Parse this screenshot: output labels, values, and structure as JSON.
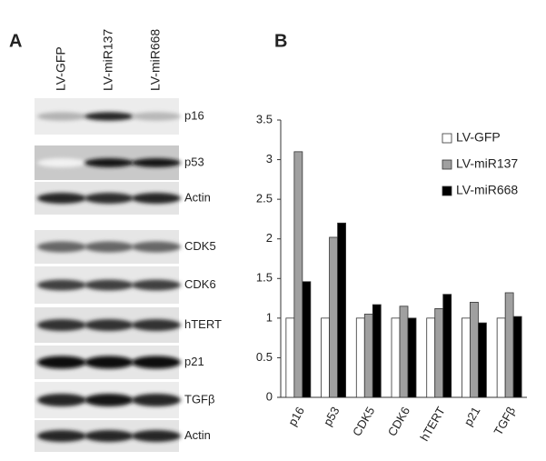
{
  "figure": {
    "panel_a": "A",
    "panel_b": "B"
  },
  "blot": {
    "lanes": [
      "LV-GFP",
      "LV-miR137",
      "LV-miR668"
    ],
    "rows": [
      "p16",
      "p53",
      "Actin",
      "CDK5",
      "CDK6",
      "hTERT",
      "p21",
      "TGFβ",
      "Actin"
    ]
  },
  "chart_data": {
    "type": "bar",
    "categories": [
      "p16",
      "p53",
      "CDK5",
      "CDK6",
      "hTERT",
      "p21",
      "TGFβ"
    ],
    "series": [
      {
        "name": "LV-GFP",
        "color": "#ffffff",
        "values": [
          1,
          1,
          1,
          1,
          1,
          1,
          1
        ]
      },
      {
        "name": "LV-miR137",
        "color": "#a0a0a0",
        "values": [
          3.1,
          2.02,
          1.05,
          1.15,
          1.12,
          1.2,
          1.32
        ]
      },
      {
        "name": "LV-miR668",
        "color": "#000000",
        "values": [
          1.46,
          2.2,
          1.17,
          1.0,
          1.3,
          0.94,
          1.02
        ]
      }
    ],
    "ylim": [
      0,
      3.5
    ],
    "yticks": [
      0,
      {
        "value": 0.5,
        "label": "0.5"
      },
      1,
      {
        "value": 1.5,
        "label": "1.5"
      },
      2,
      {
        "value": 2.5,
        "label": "2.5"
      },
      3,
      {
        "value": 3.5,
        "label": "3.5"
      }
    ],
    "legend": "upper right",
    "grid": false
  }
}
